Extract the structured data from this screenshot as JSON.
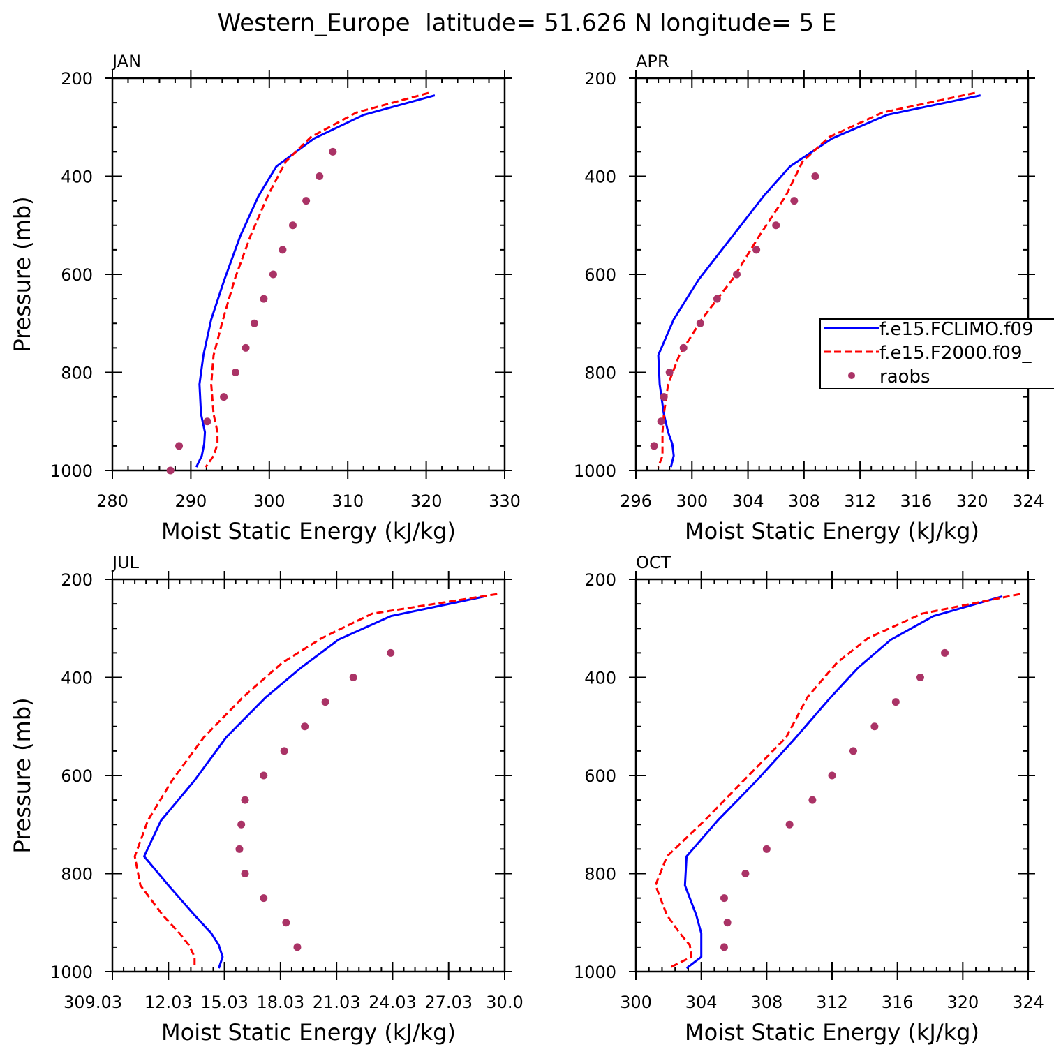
{
  "page": {
    "title": "Western_Europe  latitude= 51.626 N longitude= 5 E"
  },
  "legend": {
    "entries": [
      {
        "label": "f.e15.FCLIMO.f09",
        "color": "#0000ff",
        "style": "solid"
      },
      {
        "label": "f.e15.F2000.f09_",
        "color": "#ff0000",
        "style": "dashed"
      },
      {
        "label": "raobs",
        "color": "#aa3366",
        "style": "marker"
      }
    ]
  },
  "colors": {
    "model1": "#0000ff",
    "model2": "#ff0000",
    "obs": "#aa3366"
  },
  "chart_data": [
    {
      "type": "line",
      "title": "JAN",
      "xlabel": "Moist Static Energy (kJ/kg)",
      "ylabel": "Pressure (mb)",
      "xlim": [
        280,
        330
      ],
      "ylim": [
        1000,
        200
      ],
      "xticks": [
        "280",
        "290",
        "300",
        "310",
        "320",
        "330"
      ],
      "yticks": [
        "200",
        "400",
        "600",
        "800",
        "1000"
      ],
      "series": [
        {
          "name": "f.e15.FCLIMO.f09",
          "style": "solid",
          "x": [
            321.1,
            312.0,
            305.7,
            300.9,
            298.6,
            296.3,
            294.3,
            292.6,
            291.6,
            291.1,
            291.3,
            291.8,
            291.7,
            291.4,
            290.7
          ],
          "y": [
            235,
            275,
            323,
            380,
            441,
            522,
            610,
            692,
            765,
            824,
            885,
            922,
            946,
            970,
            993
          ]
        },
        {
          "name": "f.e15.F2000.f09_",
          "style": "dashed",
          "x": [
            320.3,
            311.1,
            305.3,
            302.1,
            299.8,
            297.6,
            295.6,
            294.1,
            292.9,
            292.6,
            292.9,
            293.4,
            293.4,
            292.9,
            291.9
          ],
          "y": [
            230,
            270,
            320,
            370,
            440,
            522,
            610,
            692,
            765,
            824,
            885,
            922,
            946,
            970,
            993
          ]
        },
        {
          "name": "raobs",
          "style": "marker",
          "x": [
            308.1,
            306.4,
            304.7,
            303.0,
            301.7,
            300.5,
            299.3,
            298.1,
            297.0,
            295.7,
            294.2,
            292.1,
            288.5,
            287.4
          ],
          "y": [
            350,
            400,
            450,
            500,
            550,
            600,
            650,
            700,
            750,
            800,
            850,
            900,
            950,
            1000
          ]
        }
      ]
    },
    {
      "type": "line",
      "title": "APR",
      "xlabel": "Moist Static Energy (kJ/kg)",
      "ylabel": "",
      "xlim": [
        296,
        324
      ],
      "ylim": [
        1000,
        200
      ],
      "xticks": [
        "296",
        "300",
        "304",
        "308",
        "312",
        "316",
        "320",
        "324"
      ],
      "yticks": [
        "200",
        "400",
        "600",
        "800",
        "1000"
      ],
      "series": [
        {
          "name": "f.e15.FCLIMO.f09",
          "style": "solid",
          "x": [
            320.6,
            313.9,
            310.0,
            307.0,
            305.1,
            302.9,
            300.5,
            298.7,
            297.6,
            297.7,
            298.0,
            298.3,
            298.6,
            298.7,
            298.5
          ],
          "y": [
            235,
            275,
            323,
            380,
            441,
            522,
            610,
            692,
            765,
            824,
            885,
            922,
            946,
            970,
            993
          ]
        },
        {
          "name": "f.e15.F2000.f09_",
          "style": "dashed",
          "x": [
            320.2,
            313.6,
            309.8,
            307.9,
            306.7,
            304.8,
            302.9,
            300.7,
            299.1,
            298.3,
            298.0,
            297.9,
            297.9,
            297.9,
            297.6
          ],
          "y": [
            230,
            270,
            320,
            370,
            440,
            522,
            610,
            692,
            765,
            824,
            885,
            922,
            946,
            970,
            993
          ]
        },
        {
          "name": "raobs",
          "style": "marker",
          "x": [
            308.8,
            307.3,
            306.0,
            304.6,
            303.2,
            301.8,
            300.6,
            299.4,
            298.4,
            298.0,
            297.8,
            297.3
          ],
          "y": [
            400,
            450,
            500,
            550,
            600,
            650,
            700,
            750,
            800,
            850,
            900,
            950
          ]
        }
      ]
    },
    {
      "type": "line",
      "title": "JUL",
      "xlabel": "Moist Static Energy (kJ/kg)",
      "ylabel": "Pressure (mb)",
      "xlim": [
        309.0,
        330.0
      ],
      "ylim": [
        1000,
        200
      ],
      "xticks": [
        "309.03",
        "12.03",
        "15.03",
        "18.03",
        "21.03",
        "24.03",
        "27.03",
        "30.0"
      ],
      "yticks": [
        "200",
        "400",
        "600",
        "800",
        "1000"
      ],
      "series": [
        {
          "name": "f.e15.FCLIMO.f09",
          "style": "solid",
          "x": [
            328.9,
            323.9,
            321.1,
            319.1,
            317.2,
            315.1,
            313.4,
            311.6,
            310.7,
            312.0,
            313.4,
            314.3,
            314.7,
            314.9,
            314.7
          ],
          "y": [
            235,
            275,
            323,
            380,
            441,
            522,
            610,
            692,
            765,
            824,
            885,
            922,
            946,
            970,
            993
          ]
        },
        {
          "name": "f.e15.F2000.f09_",
          "style": "dashed",
          "x": [
            329.6,
            322.9,
            320.2,
            318.1,
            316.0,
            313.9,
            312.2,
            310.9,
            310.2,
            310.5,
            311.7,
            312.6,
            313.1,
            313.4,
            313.4
          ],
          "y": [
            230,
            270,
            320,
            370,
            440,
            522,
            610,
            692,
            765,
            824,
            885,
            922,
            946,
            970,
            993
          ]
        },
        {
          "name": "raobs",
          "style": "marker",
          "x": [
            323.9,
            321.9,
            320.4,
            319.3,
            318.2,
            317.1,
            316.1,
            315.9,
            315.8,
            316.1,
            317.1,
            318.3,
            318.9
          ],
          "y": [
            350,
            400,
            450,
            500,
            550,
            600,
            650,
            700,
            750,
            800,
            850,
            900,
            950
          ]
        }
      ]
    },
    {
      "type": "line",
      "title": "OCT",
      "xlabel": "Moist Static Energy (kJ/kg)",
      "ylabel": "",
      "xlim": [
        300,
        324
      ],
      "ylim": [
        1000,
        200
      ],
      "xticks": [
        "300",
        "304",
        "308",
        "312",
        "316",
        "320",
        "324"
      ],
      "yticks": [
        "200",
        "400",
        "600",
        "800",
        "1000"
      ],
      "series": [
        {
          "name": "f.e15.FCLIMO.f09",
          "style": "solid",
          "x": [
            322.4,
            318.2,
            315.6,
            313.6,
            311.9,
            309.8,
            307.4,
            305.0,
            303.1,
            303.0,
            303.7,
            304.0,
            304.0,
            304.0,
            303.1
          ],
          "y": [
            235,
            275,
            323,
            380,
            441,
            522,
            610,
            692,
            765,
            824,
            885,
            922,
            946,
            970,
            993
          ]
        },
        {
          "name": "f.e15.F2000.f09_",
          "style": "dashed",
          "x": [
            323.5,
            317.5,
            314.2,
            312.3,
            310.5,
            309.2,
            306.6,
            304.2,
            301.9,
            301.2,
            301.9,
            302.7,
            303.3,
            303.4,
            302.0
          ],
          "y": [
            230,
            270,
            320,
            370,
            440,
            522,
            610,
            692,
            765,
            824,
            885,
            922,
            946,
            970,
            993
          ]
        },
        {
          "name": "raobs",
          "style": "marker",
          "x": [
            318.9,
            317.4,
            315.9,
            314.6,
            313.3,
            312.0,
            310.8,
            309.4,
            308.0,
            306.7,
            305.4,
            305.6,
            305.4
          ],
          "y": [
            350,
            400,
            450,
            500,
            550,
            600,
            650,
            700,
            750,
            800,
            850,
            900,
            950
          ]
        }
      ]
    }
  ]
}
